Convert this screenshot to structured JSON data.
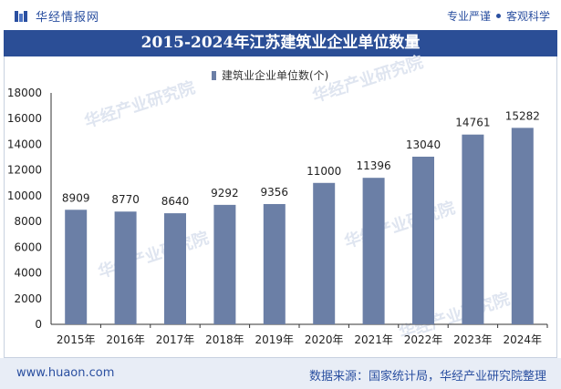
{
  "header": {
    "brand": "华经情报网",
    "tagline_left": "专业严谨",
    "tagline_right": "客观科学"
  },
  "title": "2015-2024年江苏建筑业企业单位数量",
  "footer": {
    "site": "www.huaon.com",
    "source": "数据来源：国家统计局，华经产业研究院整理"
  },
  "watermark": "华经产业研究院",
  "colors": {
    "bar": "#6b7fa6",
    "title_bg": "#2b4e96",
    "brand": "#2a4fa0",
    "footer_bg": "#e8edf6"
  },
  "chart_data": {
    "type": "bar",
    "title": "2015-2024年江苏建筑业企业单位数量",
    "categories": [
      "2015年",
      "2016年",
      "2017年",
      "2018年",
      "2019年",
      "2020年",
      "2021年",
      "2022年",
      "2023年",
      "2024年"
    ],
    "series": [
      {
        "name": "建筑业企业单位数(个)",
        "values": [
          8909,
          8770,
          8640,
          9292,
          9356,
          11000,
          11396,
          13040,
          14761,
          15282
        ]
      }
    ],
    "ylim": [
      0,
      18000
    ],
    "yticks": [
      0,
      2000,
      4000,
      6000,
      8000,
      10000,
      12000,
      14000,
      16000,
      18000
    ],
    "legend_position": "top-center",
    "grid": false,
    "data_labels": true
  }
}
